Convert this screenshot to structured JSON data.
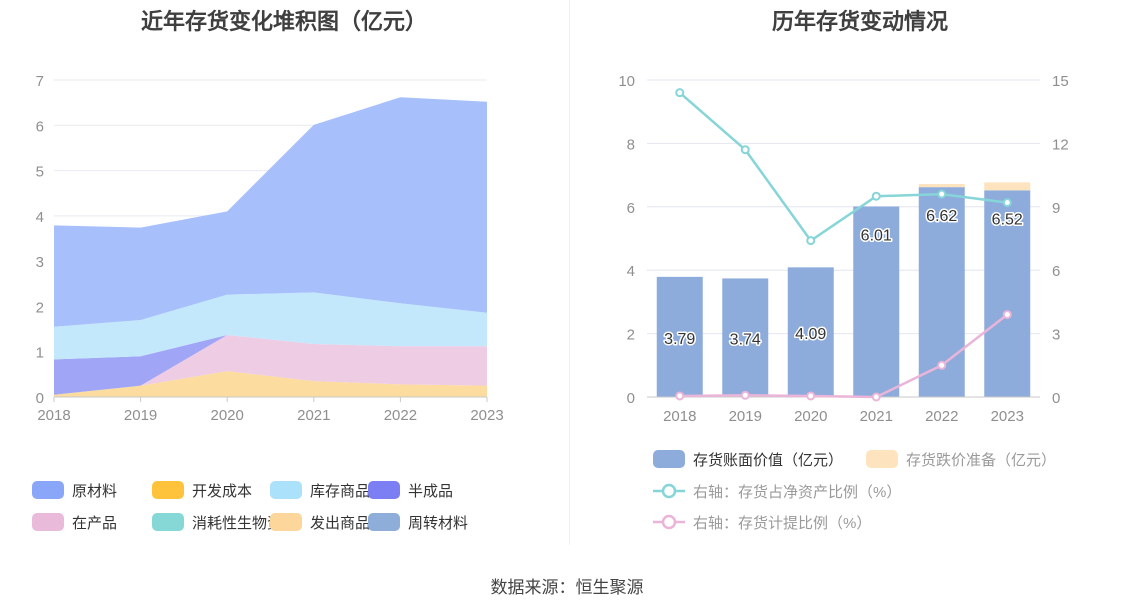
{
  "source_label": "数据来源：恒生聚源",
  "chart_data": [
    {
      "type": "area",
      "stacked": true,
      "title": "近年存货变化堆积图（亿元）",
      "categories": [
        "2018",
        "2019",
        "2020",
        "2021",
        "2022",
        "2023"
      ],
      "ylim": [
        0,
        7
      ],
      "yticks": [
        "0",
        "1",
        "2",
        "3",
        "4",
        "5",
        "6",
        "7"
      ],
      "series": [
        {
          "name": "发出商品",
          "color": "#fcdc9f",
          "values": [
            0.05,
            0.25,
            0.57,
            0.35,
            0.28,
            0.25
          ]
        },
        {
          "name": "在产品",
          "color": "#eecce4",
          "values": [
            0,
            0,
            0.8,
            0.82,
            0.84,
            0.87
          ]
        },
        {
          "name": "半成品",
          "color": "#a0a6f5",
          "values": [
            0.78,
            0.65,
            0,
            0,
            0,
            0
          ]
        },
        {
          "name": "库存商品",
          "color": "#c4e8fb",
          "values": [
            0.72,
            0.8,
            0.89,
            1.14,
            0.95,
            0.74
          ]
        },
        {
          "name": "原材料",
          "color": "#a7bffb",
          "values": [
            2.24,
            2.04,
            1.84,
            3.7,
            4.55,
            4.66
          ]
        }
      ],
      "legend": [
        {
          "name": "原材料",
          "color": "#8aa6f9"
        },
        {
          "name": "开发成本",
          "color": "#fec33b"
        },
        {
          "name": "库存商品",
          "color": "#abe1fb"
        },
        {
          "name": "半成品",
          "color": "#7b7ff3"
        },
        {
          "name": "在产品",
          "color": "#e9bada"
        },
        {
          "name": "消耗性生物资产",
          "color": "#85d8d5"
        },
        {
          "name": "发出商品",
          "color": "#fdd69b"
        },
        {
          "name": "周转材料",
          "color": "#8eadd9"
        }
      ]
    },
    {
      "type": "bar",
      "title": "历年存货变动情况",
      "categories": [
        "2018",
        "2019",
        "2020",
        "2021",
        "2022",
        "2023"
      ],
      "ylim": [
        0,
        10
      ],
      "yticks": [
        "0",
        "2",
        "4",
        "6",
        "8",
        "10"
      ],
      "y2lim": [
        0,
        15
      ],
      "y2ticks": [
        "0",
        "3",
        "6",
        "9",
        "12",
        "15"
      ],
      "series": [
        {
          "name": "存货账面价值（亿元）",
          "color": "#8dacdb",
          "values": [
            3.79,
            3.74,
            4.09,
            6.01,
            6.62,
            6.52
          ],
          "labels": [
            "3.79",
            "3.74",
            "4.09",
            "6.01",
            "6.62",
            "6.52"
          ]
        },
        {
          "name": "存货跌价准备（亿元）",
          "color": "#fde4bf",
          "values": [
            0,
            0,
            0,
            0,
            0.1,
            0.25
          ]
        },
        {
          "name": "右轴：存货占净资产比例（%）",
          "color": "#86d5d8",
          "axis": "right",
          "values": [
            14.4,
            11.7,
            7.4,
            9.5,
            9.6,
            9.2
          ]
        },
        {
          "name": "右轴：存货计提比例（%）",
          "color": "#eab5d8",
          "axis": "right",
          "values": [
            0.05,
            0.08,
            0.05,
            0.0,
            1.5,
            3.9
          ]
        }
      ]
    }
  ]
}
